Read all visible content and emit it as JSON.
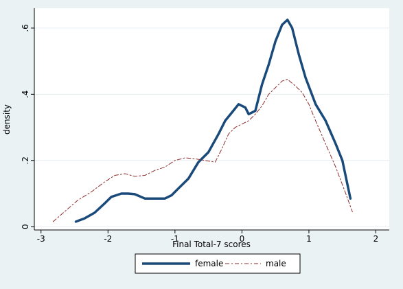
{
  "chart_data": {
    "type": "line",
    "xlabel": "Final Total-7 scores",
    "ylabel": "density",
    "xlim": [
      -3.1,
      2.2
    ],
    "ylim": [
      -0.01,
      0.66
    ],
    "x_ticks": [
      -3,
      -2,
      -1,
      0,
      1,
      2
    ],
    "x_tick_labels": [
      "-3",
      "-2",
      "-1",
      "0",
      "1",
      "2"
    ],
    "y_ticks": [
      0,
      0.2,
      0.4,
      0.6
    ],
    "y_tick_labels": [
      "0",
      ".2",
      ".4",
      ".6"
    ],
    "grid": "horizontal",
    "legend_position": "bottom",
    "colors": {
      "female": "#1a4a7a",
      "male": "#8b2a2a",
      "plot_bg": "#ffffff",
      "outer_bg": "#eaf2f3",
      "grid": "#e6eef0"
    },
    "series": [
      {
        "name": "female",
        "style": "solid",
        "x": [
          -2.48,
          -2.35,
          -2.2,
          -2.05,
          -1.95,
          -1.8,
          -1.7,
          -1.6,
          -1.45,
          -1.3,
          -1.15,
          -1.05,
          -0.95,
          -0.8,
          -0.65,
          -0.5,
          -0.35,
          -0.25,
          -0.15,
          -0.05,
          0.05,
          0.1,
          0.2,
          0.3,
          0.4,
          0.5,
          0.6,
          0.68,
          0.75,
          0.85,
          0.95,
          1.1,
          1.25,
          1.4,
          1.5,
          1.62
        ],
        "y": [
          0.015,
          0.025,
          0.042,
          0.07,
          0.09,
          0.1,
          0.1,
          0.098,
          0.085,
          0.085,
          0.085,
          0.095,
          0.115,
          0.145,
          0.195,
          0.225,
          0.28,
          0.32,
          0.345,
          0.37,
          0.36,
          0.34,
          0.35,
          0.43,
          0.49,
          0.56,
          0.61,
          0.625,
          0.6,
          0.52,
          0.45,
          0.37,
          0.32,
          0.25,
          0.2,
          0.085
        ]
      },
      {
        "name": "male",
        "style": "dash-dot",
        "x": [
          -2.82,
          -2.65,
          -2.45,
          -2.25,
          -2.05,
          -1.9,
          -1.75,
          -1.6,
          -1.45,
          -1.3,
          -1.15,
          -1.0,
          -0.85,
          -0.7,
          -0.55,
          -0.4,
          -0.3,
          -0.2,
          -0.1,
          0.0,
          0.1,
          0.2,
          0.3,
          0.4,
          0.5,
          0.6,
          0.68,
          0.8,
          0.9,
          1.0,
          1.1,
          1.25,
          1.4,
          1.55,
          1.65
        ],
        "y": [
          0.015,
          0.045,
          0.08,
          0.105,
          0.135,
          0.155,
          0.16,
          0.152,
          0.155,
          0.17,
          0.18,
          0.2,
          0.208,
          0.205,
          0.2,
          0.195,
          0.235,
          0.28,
          0.3,
          0.31,
          0.32,
          0.34,
          0.365,
          0.4,
          0.42,
          0.44,
          0.445,
          0.425,
          0.405,
          0.37,
          0.32,
          0.25,
          0.18,
          0.1,
          0.045
        ]
      }
    ]
  }
}
